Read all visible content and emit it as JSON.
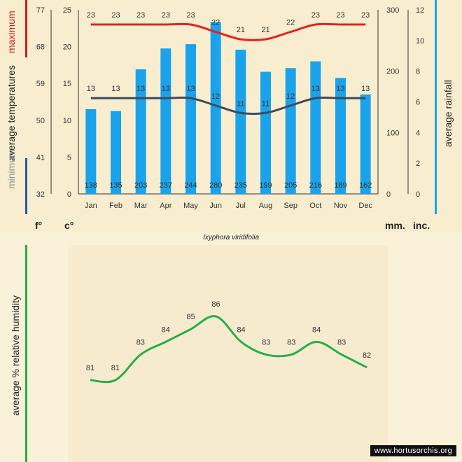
{
  "species": "Ixyphora viridifolia",
  "credit": "www.hortusorchis.org",
  "colors": {
    "max_line": "#e8211d",
    "min_line": "#3e4a5c",
    "bars": "#1aa3ea",
    "humidity": "#22b04a",
    "accent_maximum": "#d9161b",
    "accent_minimum": "#1f5aa0",
    "accent_rainfall": "#1aa3ea",
    "accent_humidity": "#22b04a"
  },
  "labels": {
    "maximum": "maximum",
    "average_temperatures": "average  temperatures",
    "minimum": "minimum",
    "average_rainfall": "average rainfall",
    "humidity": "average %  relative humidity",
    "unit_f": "f°",
    "unit_c": "c°",
    "unit_mm": "mm.",
    "unit_inc": "inc."
  },
  "chart_data": [
    {
      "type": "bar",
      "categories": [
        "Jan",
        "Feb",
        "Mar",
        "Apr",
        "May",
        "Jun",
        "Jul",
        "Aug",
        "Sep",
        "Oct",
        "Nov",
        "Dec"
      ],
      "series": [
        {
          "name": "maximum",
          "kind": "line",
          "axis": "celsius",
          "values": [
            23,
            23,
            23,
            23,
            23,
            22,
            21,
            21,
            22,
            23,
            23,
            23
          ]
        },
        {
          "name": "minimum",
          "kind": "line",
          "axis": "celsius",
          "values": [
            13,
            13,
            13,
            13,
            13,
            12,
            11,
            11,
            12,
            13,
            13,
            13
          ]
        },
        {
          "name": "average rainfall",
          "kind": "bar",
          "axis": "mm",
          "values": [
            138,
            135,
            203,
            237,
            244,
            280,
            235,
            199,
            205,
            216,
            189,
            162
          ]
        }
      ],
      "axes": {
        "fahrenheit": {
          "ticks": [
            "77",
            "68",
            "59",
            "50",
            "41",
            "32"
          ]
        },
        "celsius": {
          "ylim": [
            0,
            25
          ],
          "ticks": [
            "25",
            "20",
            "15",
            "10",
            "5",
            "0"
          ]
        },
        "mm": {
          "ylim": [
            0,
            300
          ],
          "ticks": [
            "300",
            "200",
            "100",
            "0"
          ]
        },
        "inches": {
          "ylim": [
            0,
            12
          ],
          "ticks": [
            "12",
            "10",
            "8",
            "6",
            "4",
            "2",
            "0"
          ]
        }
      },
      "grid": false
    },
    {
      "type": "line",
      "categories": [
        "Jan",
        "Feb",
        "Mar",
        "Apr",
        "May",
        "Jun",
        "Jul",
        "Aug",
        "Sep",
        "Oct",
        "Nov",
        "Dec"
      ],
      "series": [
        {
          "name": "average % relative humidity",
          "values": [
            81,
            81,
            83,
            84,
            85,
            86,
            84,
            83,
            83,
            84,
            83,
            82
          ]
        }
      ],
      "ylabel": "average %  relative humidity",
      "grid": false
    }
  ]
}
